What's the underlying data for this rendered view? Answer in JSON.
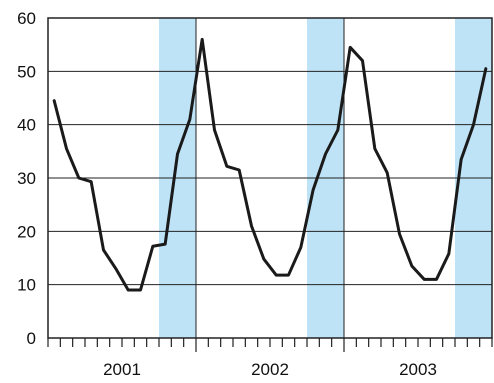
{
  "chart_data": {
    "type": "line",
    "ylim": [
      0,
      60
    ],
    "yticks": [
      "0",
      "10",
      "20",
      "30",
      "40",
      "50",
      "60"
    ],
    "year_labels": [
      "2001",
      "2002",
      "2003"
    ],
    "grid": true,
    "line_color": "#1a1a1a",
    "shade_color": "#bfe3f6",
    "grid_color": "#222222",
    "shaded_bands": [
      [
        9,
        12
      ],
      [
        21,
        24
      ],
      [
        33,
        36
      ]
    ],
    "series": [
      {
        "values": [
          44.5,
          35.5,
          30,
          29.3,
          16.5,
          13,
          9,
          9,
          17.2,
          17.6,
          34.5,
          41,
          56,
          39,
          32.2,
          31.5,
          21,
          14.8,
          11.8,
          11.8,
          17,
          27.8,
          34.5,
          39,
          54.5,
          52,
          35.5,
          31,
          19.5,
          13.5,
          11,
          11,
          15.8,
          33.5,
          40,
          50.5
        ]
      }
    ]
  }
}
